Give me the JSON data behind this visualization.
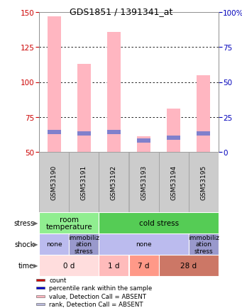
{
  "title": "GDS1851 / 1391341_at",
  "samples": [
    "GSM53190",
    "GSM53191",
    "GSM53192",
    "GSM53193",
    "GSM53194",
    "GSM53195"
  ],
  "ylim_left": [
    50,
    150
  ],
  "ylim_right": [
    0,
    100
  ],
  "yticks_left": [
    50,
    75,
    100,
    125,
    150
  ],
  "yticks_right": [
    0,
    25,
    50,
    75,
    100
  ],
  "bar_bottom": 50,
  "pink_bar_tops": [
    147,
    113,
    136,
    61,
    81,
    105
  ],
  "blue_bar_centers": [
    64,
    63,
    64,
    58,
    60,
    63
  ],
  "blue_bar_height": 3,
  "bar_width": 0.45,
  "pink_color": "#FFB6C1",
  "blue_color": "#8080CC",
  "left_axis_color": "#CC0000",
  "right_axis_color": "#0000BB",
  "stress_cells": [
    {
      "text": "room\ntemperature",
      "color": "#90EE90",
      "span": [
        0,
        2
      ]
    },
    {
      "text": "cold stress",
      "color": "#55CC55",
      "span": [
        2,
        6
      ]
    }
  ],
  "shock_cells": [
    {
      "text": "none",
      "color": "#BBBBEE",
      "span": [
        0,
        1
      ]
    },
    {
      "text": "immobiliz\nation\nstress",
      "color": "#9999CC",
      "span": [
        1,
        2
      ]
    },
    {
      "text": "none",
      "color": "#BBBBEE",
      "span": [
        2,
        5
      ]
    },
    {
      "text": "immobiliz\nation\nstress",
      "color": "#9999CC",
      "span": [
        5,
        6
      ]
    }
  ],
  "time_cells": [
    {
      "text": "0 d",
      "color": "#FFDDDD",
      "span": [
        0,
        2
      ]
    },
    {
      "text": "1 d",
      "color": "#FFBBBB",
      "span": [
        2,
        3
      ]
    },
    {
      "text": "7 d",
      "color": "#FF9988",
      "span": [
        3,
        4
      ]
    },
    {
      "text": "28 d",
      "color": "#CC7766",
      "span": [
        4,
        6
      ]
    }
  ],
  "row_labels": [
    "stress",
    "shock",
    "time"
  ],
  "legend_items": [
    {
      "color": "#CC0000",
      "label": "count"
    },
    {
      "color": "#0000CC",
      "label": "percentile rank within the sample"
    },
    {
      "color": "#FFB6C1",
      "label": "value, Detection Call = ABSENT"
    },
    {
      "color": "#BBBBDD",
      "label": "rank, Detection Call = ABSENT"
    }
  ],
  "sample_bg_color": "#CCCCCC",
  "sample_border_color": "#999999"
}
